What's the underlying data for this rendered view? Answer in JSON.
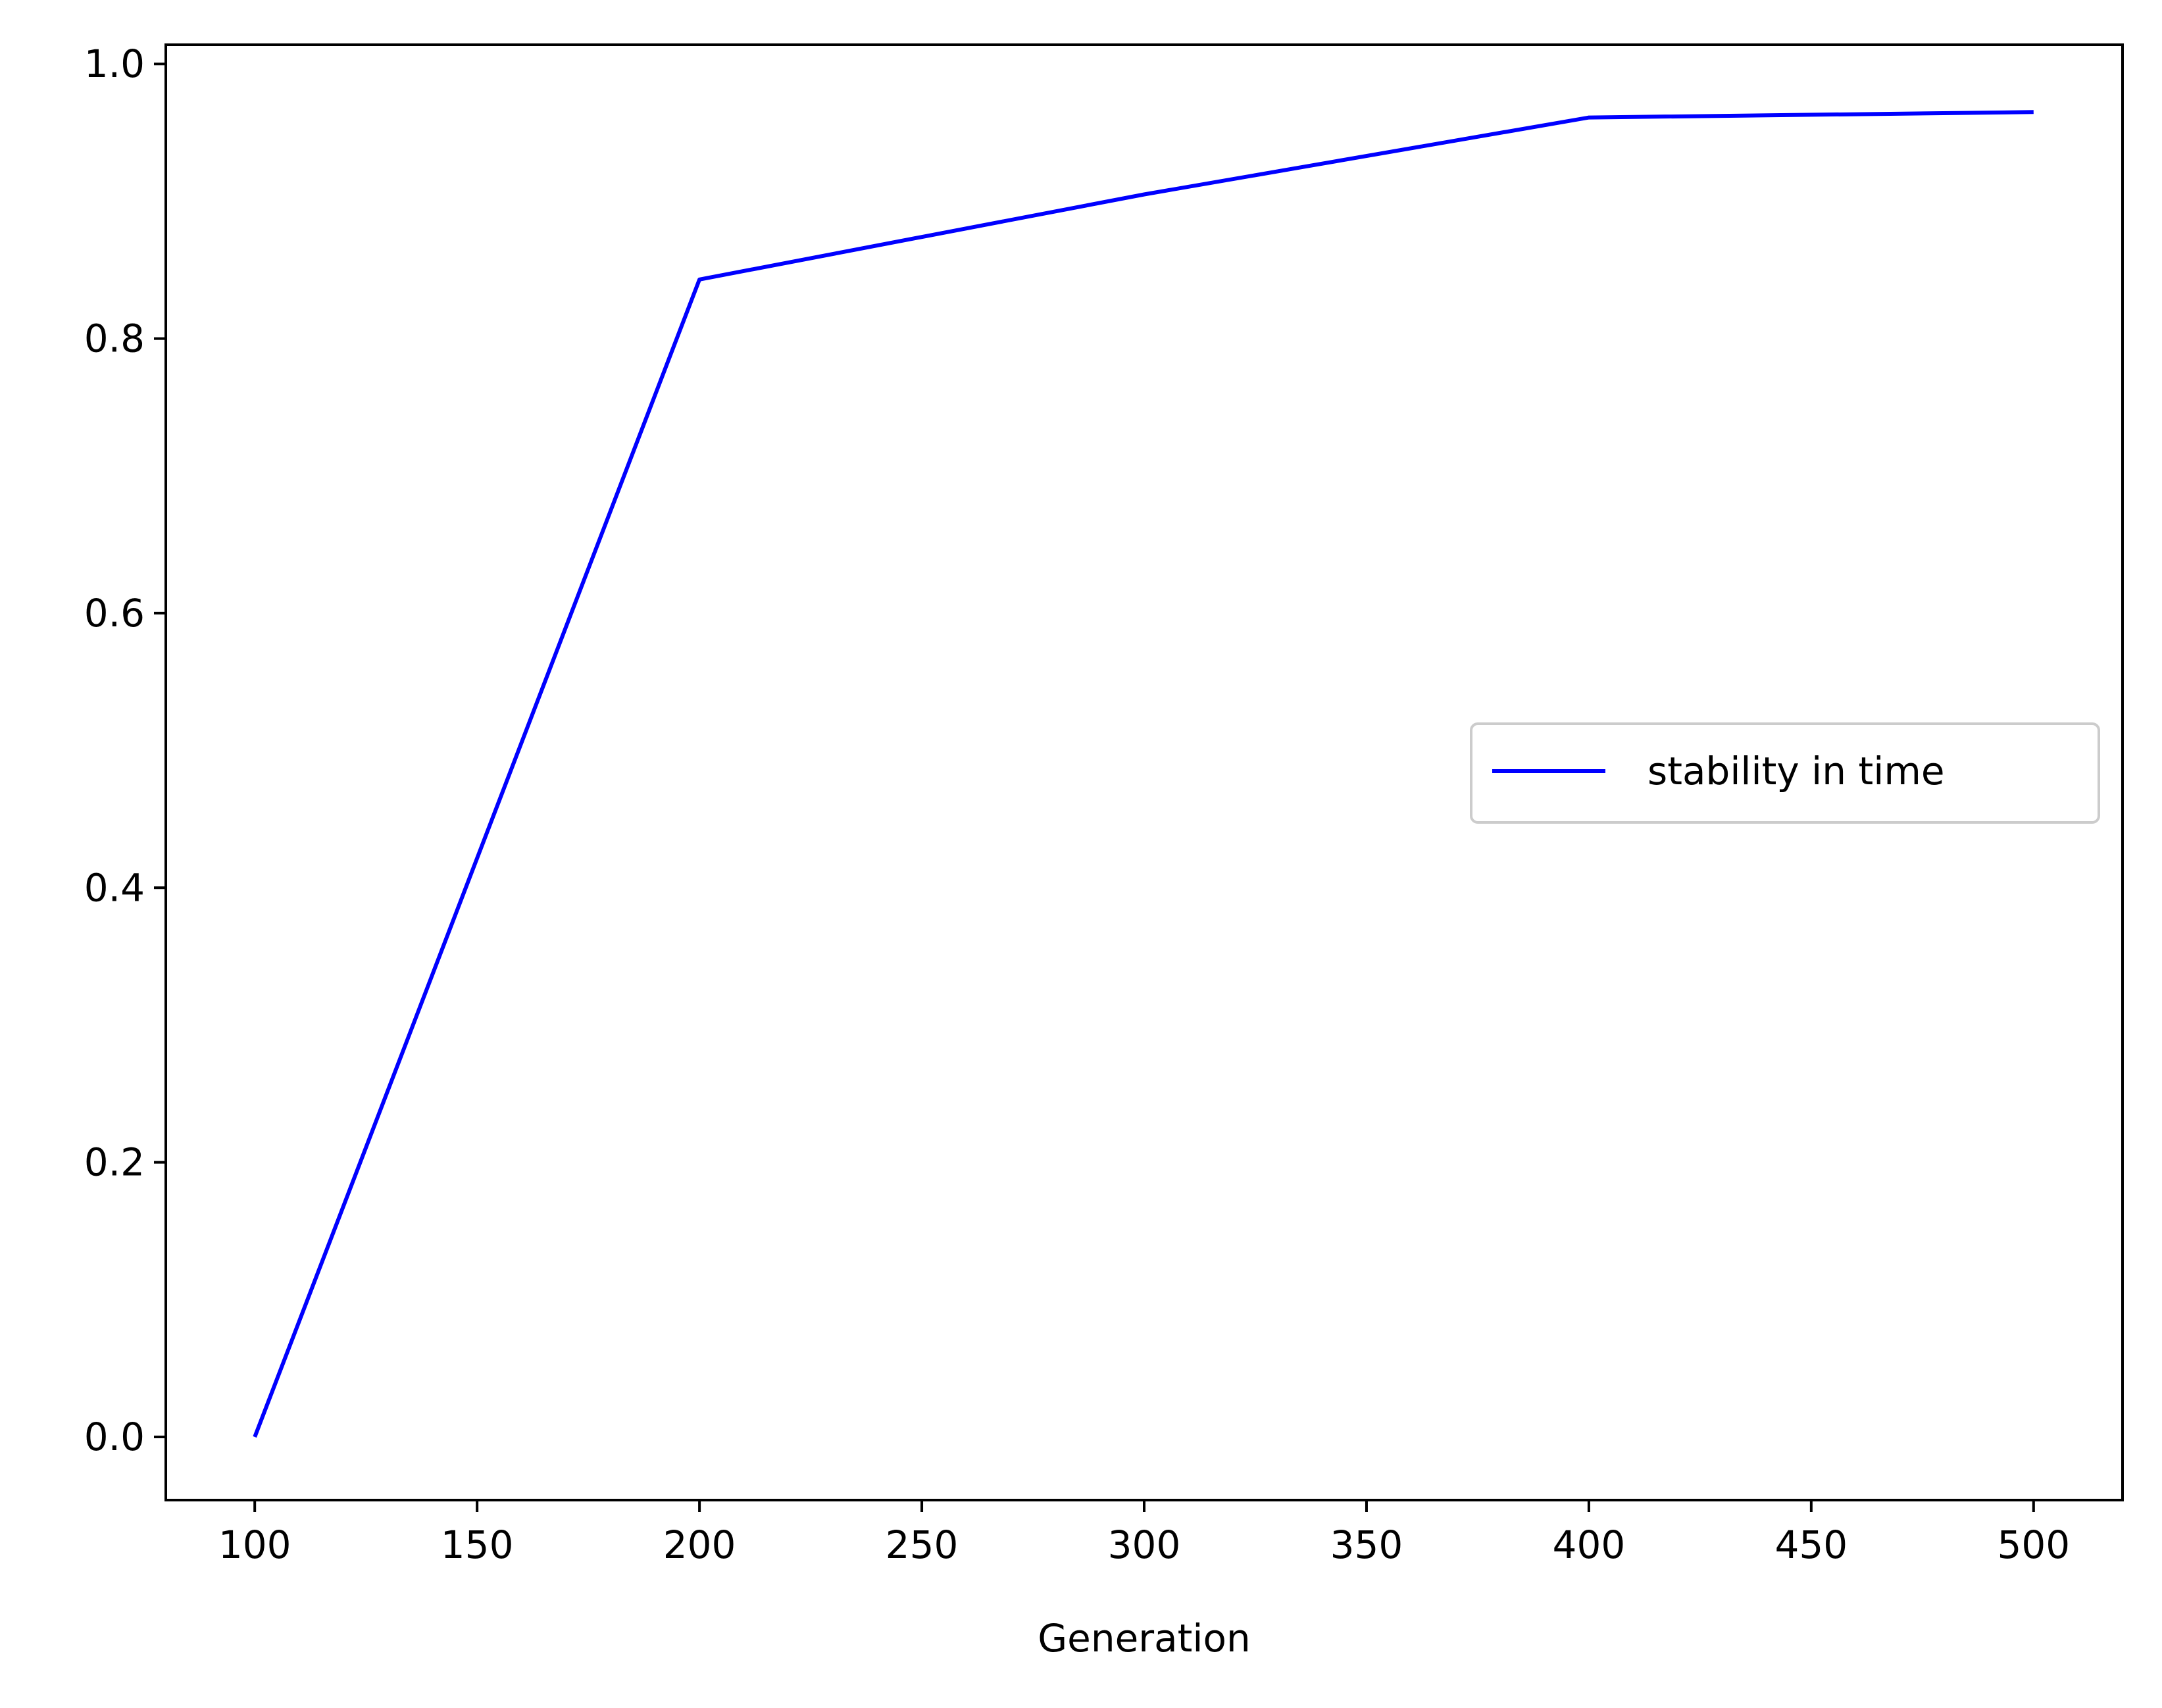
{
  "chart_data": {
    "type": "line",
    "title": "",
    "xlabel": "Generation",
    "ylabel": "",
    "xlim": [
      80,
      520
    ],
    "ylim": [
      -0.046,
      1.014
    ],
    "x_ticks": [
      100,
      150,
      200,
      250,
      300,
      350,
      400,
      450,
      500
    ],
    "x_tick_labels": [
      "100",
      "150",
      "200",
      "250",
      "300",
      "350",
      "400",
      "450",
      "500"
    ],
    "y_ticks": [
      0.0,
      0.2,
      0.4,
      0.6,
      0.8,
      1.0
    ],
    "y_tick_labels": [
      "0.0",
      "0.2",
      "0.4",
      "0.6",
      "0.8",
      "1.0"
    ],
    "grid": false,
    "legend_position": "center-right",
    "series": [
      {
        "name": "stability in time",
        "color": "#0000ff",
        "x": [
          100,
          200,
          300,
          400,
          500
        ],
        "y": [
          0.0,
          0.843,
          0.905,
          0.961,
          0.965
        ]
      }
    ]
  }
}
